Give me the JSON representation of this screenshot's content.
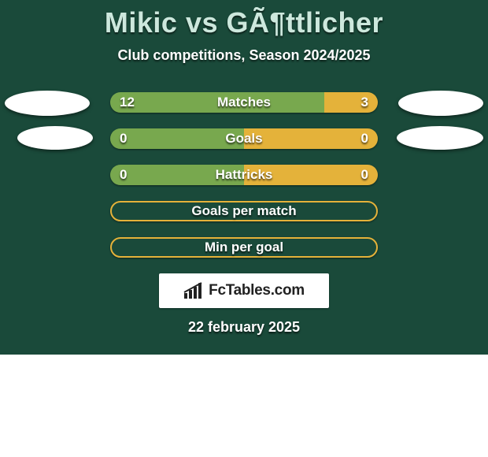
{
  "title": "Mikic vs GÃ¶ttlicher",
  "subtitle": "Club competitions, Season 2024/2025",
  "date": "22 february 2025",
  "footer_brand": "FcTables.com",
  "palette": {
    "panel_bg": "#1a4a3a",
    "left_color": "#78a84e",
    "right_color": "#e4b23a",
    "outline_color": "#e4b23a",
    "text_color": "#ffffff",
    "title_color": "#cde8dd"
  },
  "stats": [
    {
      "label": "Matches",
      "left_value": "12",
      "right_value": "3",
      "left_pct": 80,
      "right_pct": 20,
      "filled": true,
      "show_left_avatar": true,
      "show_right_avatar": true
    },
    {
      "label": "Goals",
      "left_value": "0",
      "right_value": "0",
      "left_pct": 50,
      "right_pct": 50,
      "filled": true,
      "show_left_avatar": true,
      "show_right_avatar": true
    },
    {
      "label": "Hattricks",
      "left_value": "0",
      "right_value": "0",
      "left_pct": 50,
      "right_pct": 50,
      "filled": true,
      "show_left_avatar": false,
      "show_right_avatar": false
    },
    {
      "label": "Goals per match",
      "left_value": "",
      "right_value": "",
      "left_pct": 0,
      "right_pct": 0,
      "filled": false,
      "show_left_avatar": false,
      "show_right_avatar": false
    },
    {
      "label": "Min per goal",
      "left_value": "",
      "right_value": "",
      "left_pct": 0,
      "right_pct": 0,
      "filled": false,
      "show_left_avatar": false,
      "show_right_avatar": false
    }
  ]
}
